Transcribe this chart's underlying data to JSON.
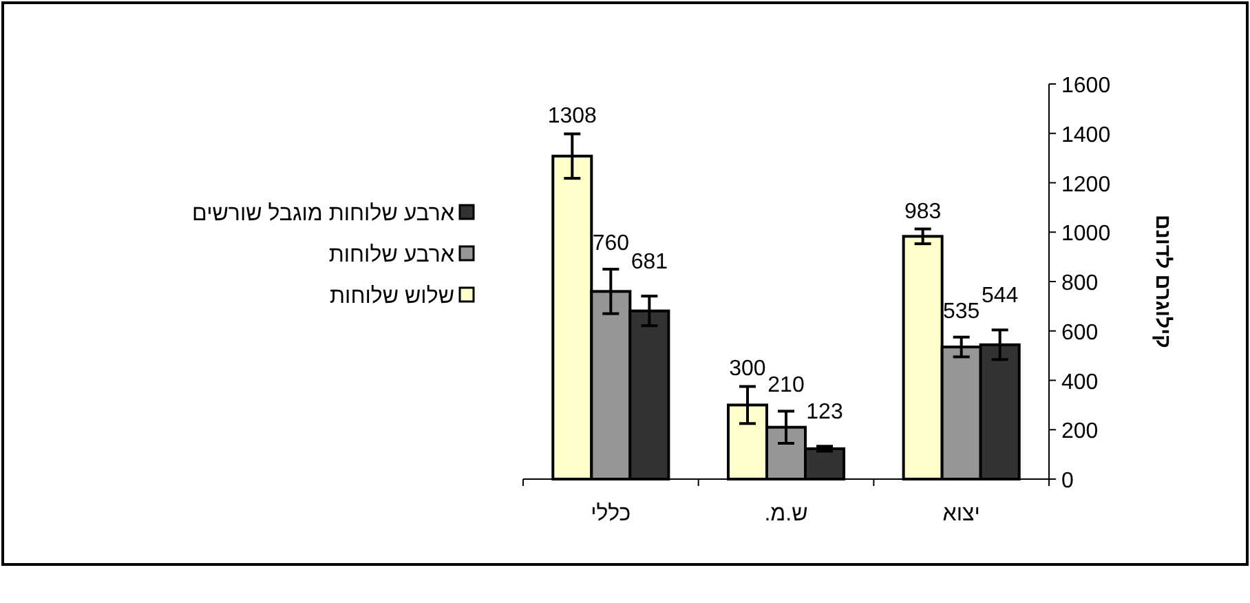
{
  "chart_data": {
    "type": "bar",
    "ylabel": "קילוגרם לדונם",
    "categories": [
      "כללי",
      "ש.מ.",
      "יצוא"
    ],
    "series": [
      {
        "name": "שלוש שלוחות",
        "color": "#ffffcc",
        "values": [
          1308,
          300,
          983
        ],
        "errors": [
          90,
          75,
          30
        ]
      },
      {
        "name": "ארבע שלוחות",
        "color": "#969696",
        "values": [
          760,
          210,
          535
        ],
        "errors": [
          90,
          65,
          40
        ]
      },
      {
        "name": "ארבע שלוחות מוגבל שורשים",
        "color": "#333333",
        "values": [
          681,
          123,
          544
        ],
        "errors": [
          60,
          10,
          60
        ]
      }
    ],
    "ylim": [
      0,
      1600
    ],
    "yticks": [
      0,
      200,
      400,
      600,
      800,
      1000,
      1200,
      1400,
      1600
    ],
    "data_labels": true,
    "legend": "left",
    "grid": false
  }
}
